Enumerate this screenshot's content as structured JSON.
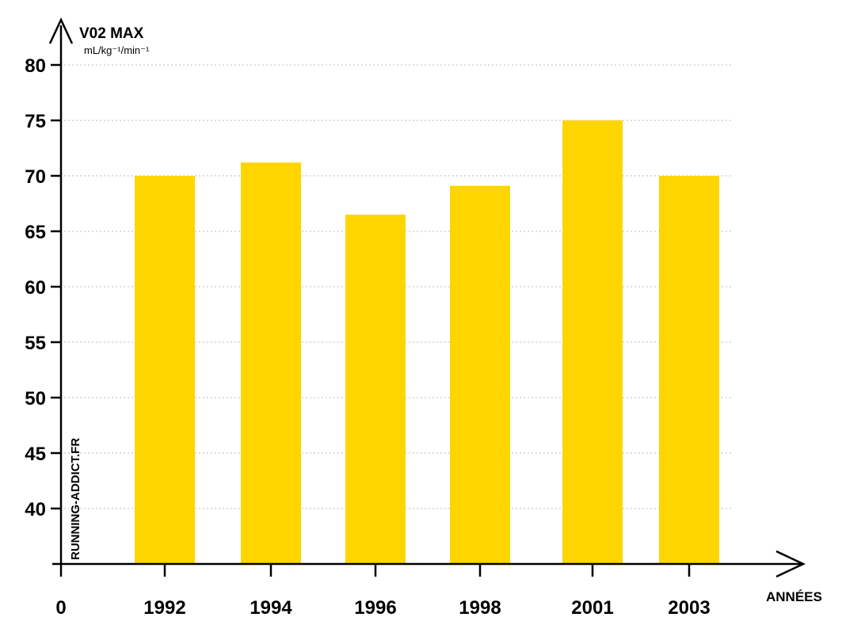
{
  "chart_data": {
    "type": "bar",
    "ylabel": "V02 MAX",
    "yunit": "mL/kg⁻¹/min⁻¹",
    "xlabel": "ANNÉES",
    "x_origin_label": "0",
    "watermark": "RUNNING-ADDICT.FR",
    "categories": [
      "1992",
      "1994",
      "1996",
      "1998",
      "2001",
      "2003"
    ],
    "values": [
      70,
      71.2,
      66.5,
      69.1,
      75,
      70
    ],
    "yticks": [
      40,
      45,
      50,
      55,
      60,
      65,
      70,
      75,
      80
    ],
    "ylim": [
      35,
      80
    ],
    "grid": true,
    "legend": "none",
    "bar_color": "#FFD500"
  }
}
